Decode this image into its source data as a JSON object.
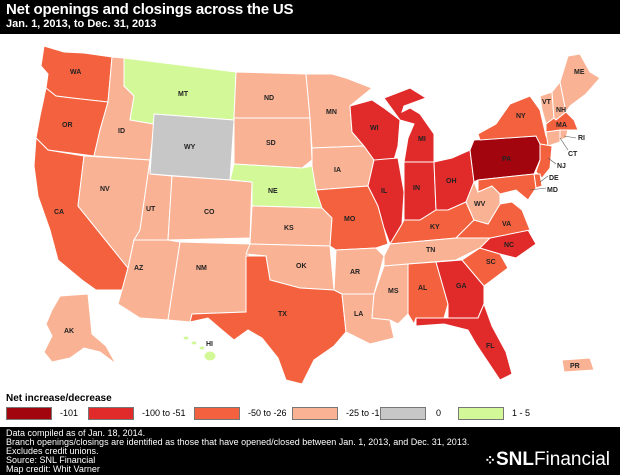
{
  "header": {
    "title": "Net openings and closings across the US",
    "subtitle": "Jan. 1, 2013, to Dec. 31, 2013"
  },
  "colors": {
    "c101": "#a3050f",
    "c100": "#e12a2a",
    "c50": "#f4613e",
    "c25": "#f9b294",
    "c0": "#c7c7c7",
    "cpos": "#d2f898"
  },
  "legend": {
    "title": "Net increase/decrease",
    "items": [
      {
        "label": "-101",
        "color": "#a3050f"
      },
      {
        "label": "-100 to -51",
        "color": "#e12a2a"
      },
      {
        "label": "-50 to -26",
        "color": "#f4613e"
      },
      {
        "label": "-25 to -1",
        "color": "#f9b294"
      },
      {
        "label": "0",
        "color": "#c7c7c7"
      },
      {
        "label": "1 - 5",
        "color": "#d2f898"
      }
    ]
  },
  "states": {
    "WA": "WA",
    "OR": "OR",
    "CA": "CA",
    "ID": "ID",
    "NV": "NV",
    "MT": "MT",
    "WY": "WY",
    "UT": "UT",
    "AZ": "AZ",
    "CO": "CO",
    "NM": "NM",
    "ND": "ND",
    "SD": "SD",
    "NE": "NE",
    "KS": "KS",
    "OK": "OK",
    "TX": "TX",
    "MN": "MN",
    "IA": "IA",
    "MO": "MO",
    "AR": "AR",
    "LA": "LA",
    "WI": "WI",
    "IL": "IL",
    "MI": "MI",
    "IN": "IN",
    "OH": "OH",
    "KY": "KY",
    "TN": "TN",
    "MS": "MS",
    "AL": "AL",
    "GA": "GA",
    "FL": "FL",
    "SC": "SC",
    "NC": "NC",
    "VA": "VA",
    "WV": "WV",
    "PA": "PA",
    "NY": "NY",
    "VT": "VT",
    "NH": "NH",
    "ME": "ME",
    "MA": "MA",
    "CT": "CT",
    "RI": "RI",
    "NJ": "NJ",
    "DE": "DE",
    "MD": "MD",
    "AK": "AK",
    "HI": "HI",
    "PR": "PR"
  },
  "footer": {
    "line1": "Data compiled as of Jan. 18, 2014.",
    "line2": "Branch openings/closings are identified as those that have opened/closed between Jan. 1, 2013, and Dec. 31, 2013.",
    "line3": "Excludes credit unions.",
    "line4": "Source: SNL Financial",
    "line5": "Map credit: Whit Varner",
    "brand_snl": "SNL",
    "brand_fin": "Financial"
  }
}
